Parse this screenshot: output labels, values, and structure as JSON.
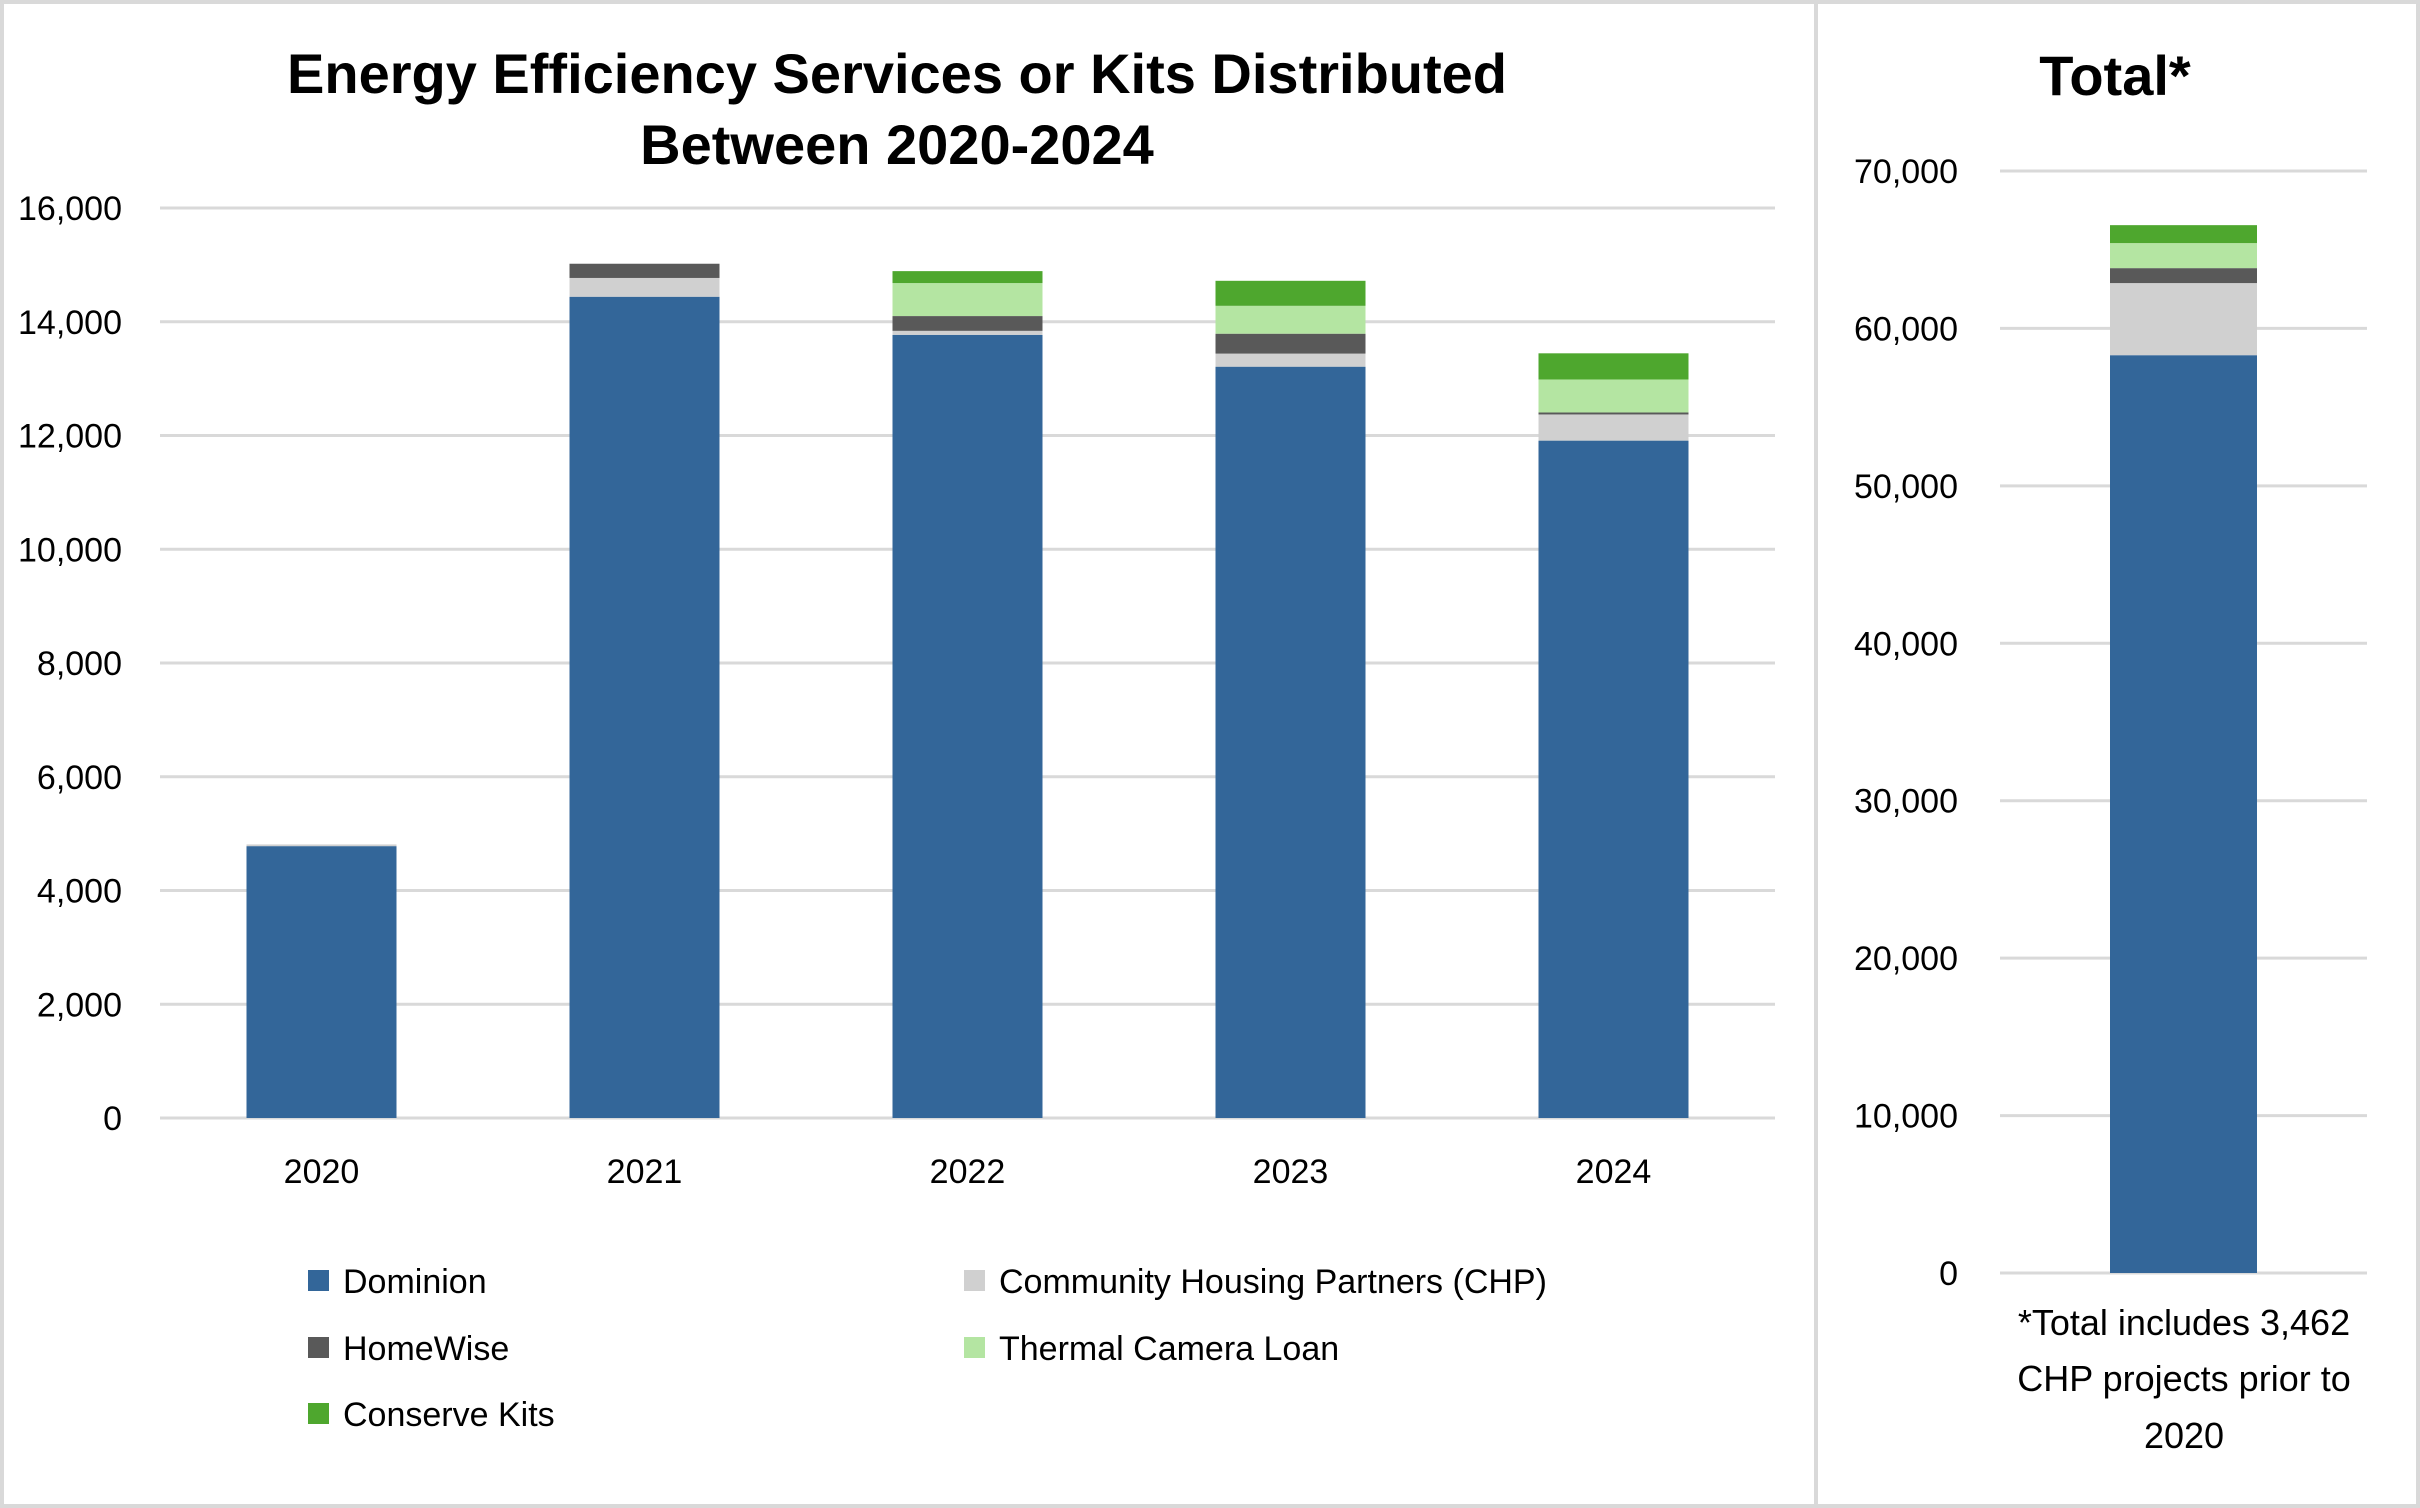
{
  "chart_data": [
    {
      "type": "bar",
      "stacked": true,
      "title_lines": [
        "Energy Efficiency Services or Kits Distributed",
        "Between 2020-2024"
      ],
      "xlabel": "",
      "ylabel": "",
      "categories": [
        "2020",
        "2021",
        "2022",
        "2023",
        "2024"
      ],
      "ylim": [
        0,
        16000
      ],
      "yticks": [
        0,
        2000,
        4000,
        6000,
        8000,
        10000,
        12000,
        14000,
        16000
      ],
      "ytick_labels": [
        "0",
        "2,000",
        "4,000",
        "6,000",
        "8,000",
        "10,000",
        "12,000",
        "14,000",
        "16,000"
      ],
      "grid": true,
      "legend_position": "bottom",
      "series": [
        {
          "name": "Dominion",
          "color": "#336699",
          "values": [
            4780,
            14440,
            13770,
            13210,
            11910
          ]
        },
        {
          "name": "Community Housing Partners (CHP)",
          "color": "#d0d0d0",
          "values": [
            30,
            330,
            70,
            230,
            460
          ]
        },
        {
          "name": "HomeWise",
          "color": "#595959",
          "values": [
            0,
            250,
            260,
            350,
            35
          ]
        },
        {
          "name": "Thermal Camera Loan",
          "color": "#b4e5a2",
          "values": [
            0,
            0,
            580,
            490,
            580
          ]
        },
        {
          "name": "Conserve Kits",
          "color": "#4ea72e",
          "values": [
            0,
            0,
            210,
            440,
            460
          ]
        }
      ]
    },
    {
      "type": "bar",
      "stacked": true,
      "title": "Total*",
      "categories": [
        "Total"
      ],
      "ylim": [
        0,
        70000
      ],
      "yticks": [
        0,
        10000,
        20000,
        30000,
        40000,
        50000,
        60000,
        70000
      ],
      "ytick_labels": [
        "0",
        "10,000",
        "20,000",
        "30,000",
        "40,000",
        "50,000",
        "60,000",
        "70,000"
      ],
      "grid": true,
      "footnote_lines": [
        "*Total includes 3,462",
        "CHP projects prior to",
        "2020"
      ],
      "series": [
        {
          "name": "Dominion",
          "color": "#336699",
          "values": [
            58300
          ]
        },
        {
          "name": "Community Housing Partners (CHP)",
          "color": "#d0d0d0",
          "values": [
            4580
          ]
        },
        {
          "name": "HomeWise",
          "color": "#595959",
          "values": [
            950
          ]
        },
        {
          "name": "Thermal Camera Loan",
          "color": "#b4e5a2",
          "values": [
            1590
          ]
        },
        {
          "name": "Conserve Kits",
          "color": "#4ea72e",
          "values": [
            1140
          ]
        }
      ]
    }
  ],
  "legend": {
    "items": [
      {
        "label": "Dominion",
        "color": "#336699"
      },
      {
        "label": "Community Housing Partners (CHP)",
        "color": "#d0d0d0"
      },
      {
        "label": "HomeWise",
        "color": "#595959"
      },
      {
        "label": "Thermal Camera Loan",
        "color": "#b4e5a2"
      },
      {
        "label": "Conserve Kits",
        "color": "#4ea72e"
      }
    ]
  }
}
